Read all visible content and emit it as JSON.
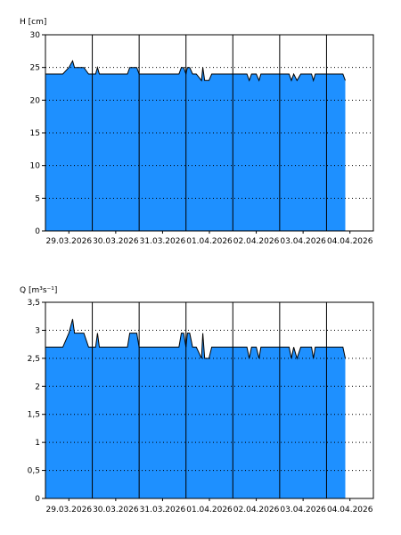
{
  "colors": {
    "fill": "#1E90FF",
    "line": "#000000",
    "grid": "#000000",
    "background": "#ffffff"
  },
  "chart_data": [
    {
      "type": "area",
      "ylabel": "H [cm]",
      "ylim": [
        0,
        30
      ],
      "yticks": [
        0,
        5,
        10,
        15,
        20,
        25,
        30
      ],
      "ytick_labels": [
        "0",
        "5",
        "10",
        "15",
        "20",
        "25",
        "30"
      ],
      "xlim": [
        0,
        7
      ],
      "xtick_labels": [
        "29.03.2026",
        "30.03.2026",
        "31.03.2026",
        "01.04.2026",
        "02.04.2026",
        "03.04.2026",
        "04.04.2026"
      ],
      "grid": true,
      "series": [
        {
          "x": [
            0,
            0.37,
            0.5,
            0.58,
            0.62,
            0.82,
            0.92,
            1.0,
            1.07,
            1.11,
            1.15,
            1.75,
            1.8,
            1.95,
            2.0,
            2.85,
            2.9,
            2.95,
            3.0,
            3.03,
            3.08,
            3.14,
            3.22,
            3.33,
            3.36,
            3.4,
            3.44,
            3.49,
            3.55,
            3.57,
            4.3,
            4.35,
            4.4,
            4.5,
            4.56,
            4.6,
            5.2,
            5.25,
            5.3,
            5.37,
            5.45,
            5.5,
            5.68,
            5.72,
            5.76,
            6.35,
            6.4
          ],
          "y": [
            24,
            24,
            25,
            26,
            25,
            25,
            24,
            24,
            24,
            25,
            24,
            24,
            25,
            25,
            24,
            24,
            25,
            25,
            24,
            25,
            25,
            24,
            24,
            23,
            25,
            23,
            23,
            23,
            24,
            24,
            24,
            23,
            24,
            24,
            23,
            24,
            24,
            23,
            24,
            23,
            24,
            24,
            24,
            23,
            24,
            24,
            23
          ]
        }
      ]
    },
    {
      "type": "area",
      "ylabel": "Q [m³s⁻¹]",
      "ylim": [
        0,
        3.5
      ],
      "yticks": [
        0,
        0.5,
        1,
        1.5,
        2,
        2.5,
        3,
        3.5
      ],
      "ytick_labels": [
        "0",
        "0,5",
        "1",
        "1,5",
        "2",
        "2,5",
        "3",
        "3,5"
      ],
      "xlim": [
        0,
        7
      ],
      "xtick_labels": [
        "29.03.2026",
        "30.03.2026",
        "31.03.2026",
        "01.04.2026",
        "02.04.2026",
        "03.04.2026",
        "04.04.2026"
      ],
      "grid": true,
      "series": [
        {
          "x": [
            0,
            0.37,
            0.5,
            0.58,
            0.62,
            0.82,
            0.92,
            1.0,
            1.07,
            1.11,
            1.15,
            1.75,
            1.8,
            1.95,
            2.0,
            2.85,
            2.9,
            2.95,
            3.0,
            3.03,
            3.08,
            3.14,
            3.22,
            3.33,
            3.36,
            3.4,
            3.44,
            3.49,
            3.55,
            3.57,
            4.3,
            4.35,
            4.4,
            4.5,
            4.56,
            4.6,
            5.2,
            5.25,
            5.3,
            5.37,
            5.45,
            5.5,
            5.68,
            5.72,
            5.76,
            6.35,
            6.4
          ],
          "y": [
            2.7,
            2.7,
            2.95,
            3.2,
            2.95,
            2.95,
            2.7,
            2.7,
            2.7,
            2.95,
            2.7,
            2.7,
            2.95,
            2.95,
            2.7,
            2.7,
            2.95,
            2.95,
            2.7,
            2.95,
            2.95,
            2.7,
            2.7,
            2.5,
            2.95,
            2.5,
            2.5,
            2.5,
            2.7,
            2.7,
            2.7,
            2.5,
            2.7,
            2.7,
            2.5,
            2.7,
            2.7,
            2.5,
            2.7,
            2.5,
            2.7,
            2.7,
            2.7,
            2.5,
            2.7,
            2.7,
            2.5
          ]
        }
      ]
    }
  ]
}
